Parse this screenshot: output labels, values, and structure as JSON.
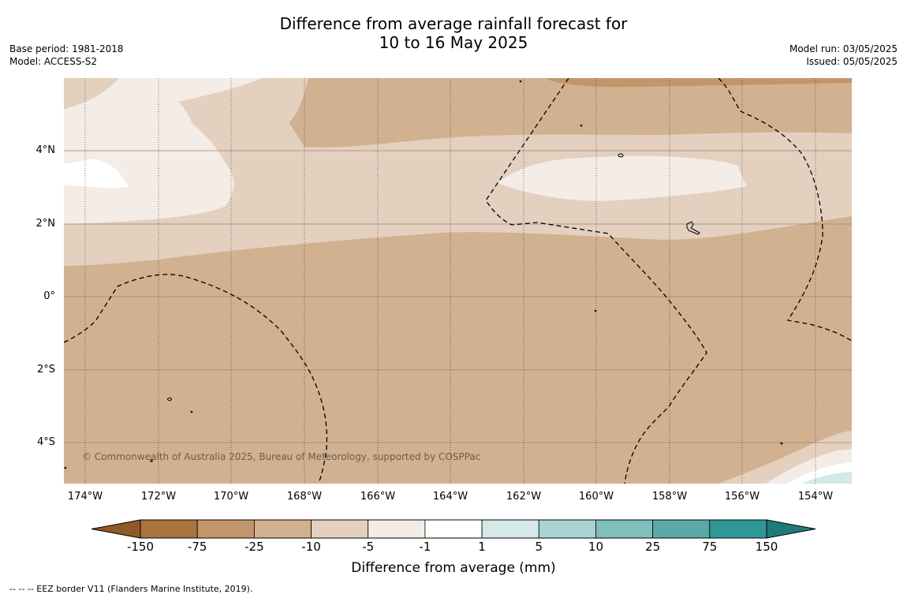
{
  "title": {
    "line1": "Difference from average rainfall forecast for",
    "line2": "10 to 16 May 2025"
  },
  "meta_left": {
    "base_period": "Base period: 1981-2018",
    "model": "Model: ACCESS-S2"
  },
  "meta_right": {
    "model_run": "Model run: 03/05/2025",
    "issued": "Issued: 05/05/2025"
  },
  "map": {
    "lat_labels": [
      "4°N",
      "2°N",
      "0°",
      "2°S",
      "4°S"
    ],
    "lon_labels": [
      "174°W",
      "172°W",
      "170°W",
      "168°W",
      "166°W",
      "164°W",
      "162°W",
      "160°W",
      "158°W",
      "156°W",
      "154°W"
    ],
    "copyright": "© Commonwealth of Australia 2025, Bureau of Meteorology, supported by COSPPac",
    "colors": {
      "brown_-25_-10": "#d2b190",
      "brown_-10_-5": "#e3d0bf",
      "brown_-5_-1": "#f4ece6",
      "white_-1_1": "#ffffff",
      "teal_1_5": "#d4e9e8",
      "brown_-75_-25": "#c2956b"
    }
  },
  "colorbar": {
    "ticks": [
      "-150",
      "-75",
      "-25",
      "-10",
      "-5",
      "-1",
      "1",
      "5",
      "10",
      "25",
      "75",
      "150"
    ],
    "colors": [
      "#ab733d",
      "#c2956b",
      "#d2b190",
      "#e3d0bf",
      "#f4ece6",
      "#ffffff",
      "#d4e9e8",
      "#a9d4d3",
      "#7fbfbc",
      "#59aaa7",
      "#2f9896"
    ],
    "extend_low_color": "#8e5a2a",
    "extend_high_color": "#1f7b78",
    "title": "Difference from average (mm)"
  },
  "legend_note": "--  --  -- EEZ border V11 (Flanders Marine Institute, 2019)."
}
